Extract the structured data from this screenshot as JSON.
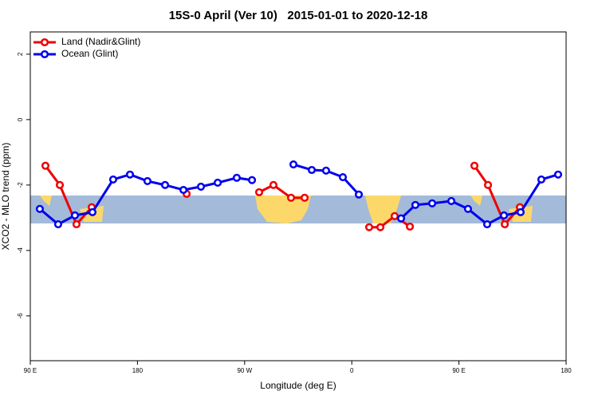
{
  "chart_data": {
    "type": "line",
    "title": "15S-0 April (Ver 10)   2015-01-01 to 2020-12-18",
    "x_label": "Longitude (deg E)",
    "y_label": "XCO2 - MLO trend (ppm)",
    "xlim": [
      90,
      540
    ],
    "xticks": [
      {
        "value": 90,
        "label": "90 E"
      },
      {
        "value": 180,
        "label": "180"
      },
      {
        "value": 270,
        "label": "90 W"
      },
      {
        "value": 360,
        "label": "0"
      },
      {
        "value": 450,
        "label": "90 E"
      },
      {
        "value": 540,
        "label": "180"
      }
    ],
    "ylim": [
      -7.37,
      2.68
    ],
    "yticks": [
      2,
      0,
      -2,
      -4,
      -6
    ],
    "legend": "top-left",
    "series": [
      {
        "name": "Land (Nadir&Glint)",
        "color": "#ee0000",
        "x": [
          102.7,
          114.8,
          128.8,
          141.6,
          null,
          221.3,
          null,
          282.2,
          294.2,
          309.0,
          320.4,
          null,
          374.6,
          384.0,
          396.0,
          408.8,
          null,
          463.0,
          474.4,
          488.5,
          501.2
        ],
        "values": [
          -1.41,
          -2.0,
          -3.2,
          -2.68,
          null,
          -2.27,
          null,
          -2.22,
          -2.0,
          -2.39,
          -2.39,
          null,
          -3.29,
          -3.29,
          -2.95,
          -3.27,
          null,
          -1.41,
          -2.0,
          -3.2,
          -2.68
        ]
      },
      {
        "name": "Ocean (Glint)",
        "color": "#0000ee",
        "x": [
          98.0,
          113.4,
          127.5,
          142.2,
          159.6,
          173.7,
          188.4,
          203.2,
          218.6,
          233.3,
          247.4,
          263.4,
          276.2,
          null,
          311.0,
          326.4,
          338.4,
          352.5,
          365.9,
          null,
          401.4,
          413.4,
          427.5,
          443.6,
          457.6,
          473.7,
          487.8,
          501.8,
          519.2,
          533.3
        ],
        "values": [
          -2.73,
          -3.2,
          -2.93,
          -2.83,
          -1.83,
          -1.68,
          -1.88,
          -2.0,
          -2.15,
          -2.05,
          -1.93,
          -1.78,
          -1.85,
          null,
          -1.37,
          -1.54,
          -1.56,
          -1.76,
          -2.29,
          null,
          -3.02,
          -2.61,
          -2.56,
          -2.49,
          -2.73,
          -3.2,
          -2.93,
          -2.83,
          -1.83,
          -1.68
        ]
      }
    ]
  }
}
